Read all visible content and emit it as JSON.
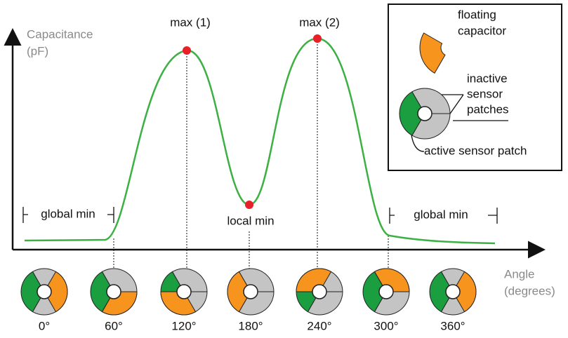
{
  "y_axis_label": {
    "line1": "Capacitance",
    "line2": "(pF)"
  },
  "x_axis_label": {
    "line1": "Angle",
    "line2": "(degrees)"
  },
  "annotations": {
    "max1": "max (1)",
    "max2": "max (2)",
    "local_min": "local min",
    "global_min_left": "global min",
    "global_min_right": "global min"
  },
  "legend": {
    "floating": {
      "line1": "floating",
      "line2": "capacitor"
    },
    "inactive": {
      "line1": "inactive",
      "line2": "sensor",
      "line3": "patches"
    },
    "active": "active sensor patch"
  },
  "angles": [
    "0°",
    "60°",
    "120°",
    "180°",
    "240°",
    "300°",
    "360°"
  ]
}
